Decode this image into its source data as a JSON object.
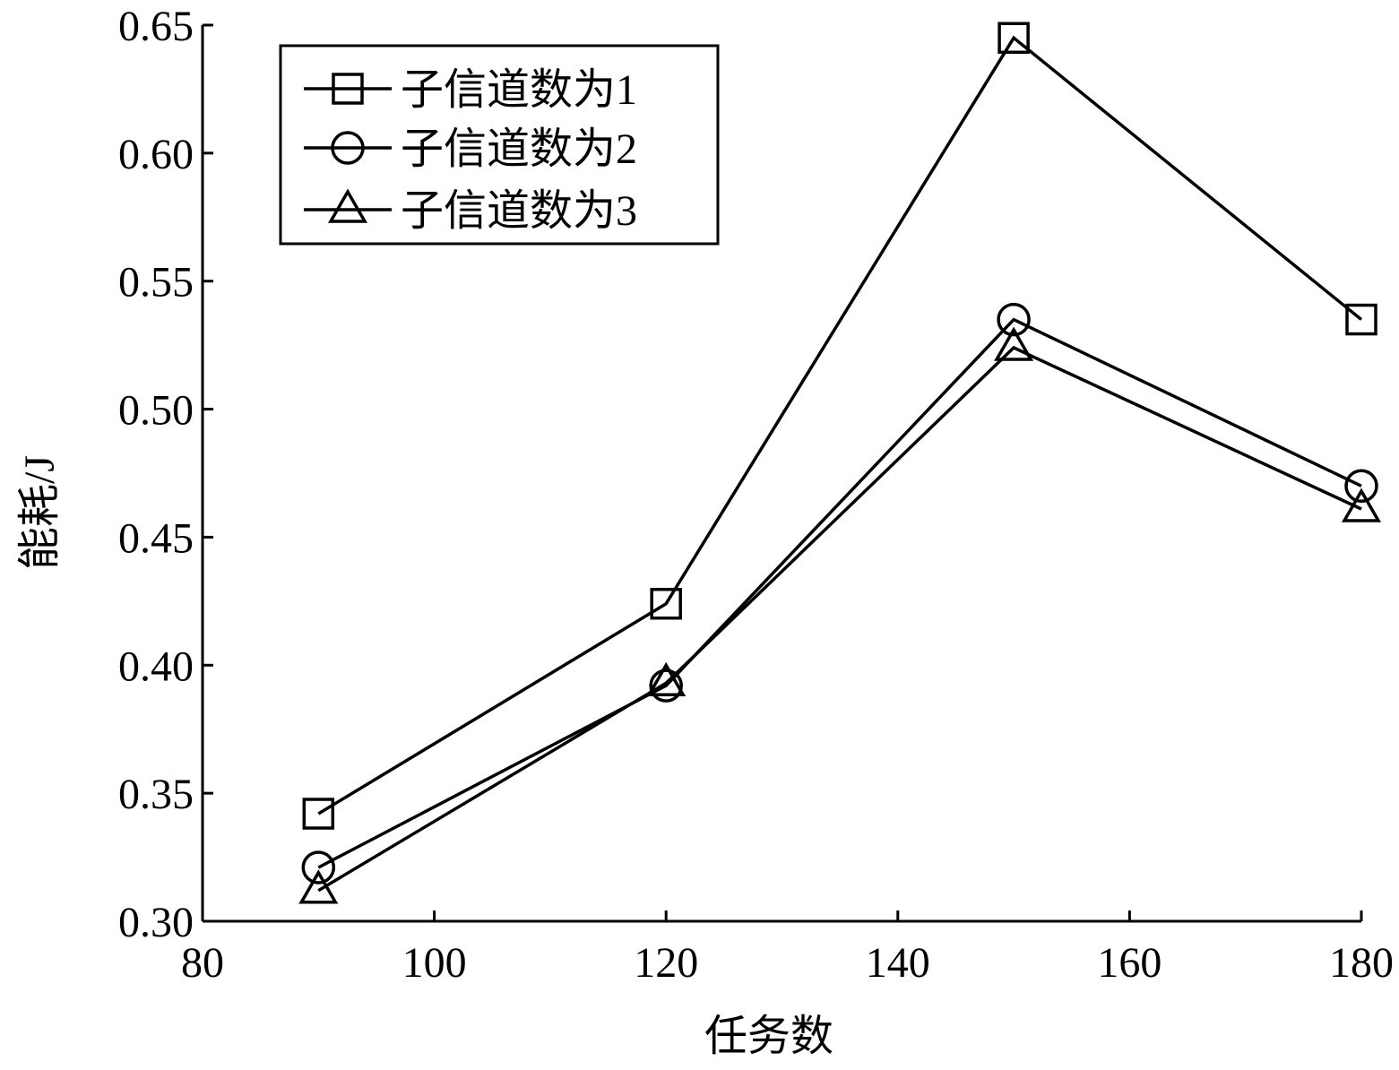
{
  "chart_data": {
    "type": "line",
    "title": "",
    "xlabel": "任务数",
    "ylabel": "能耗/J",
    "xlim": [
      80,
      180
    ],
    "ylim": [
      0.3,
      0.65
    ],
    "xticks": [
      80,
      100,
      120,
      140,
      160,
      180
    ],
    "yticks": [
      0.3,
      0.35,
      0.4,
      0.45,
      0.5,
      0.55,
      0.6,
      0.65
    ],
    "xtick_labels": [
      "80",
      "100",
      "120",
      "140",
      "160",
      "180"
    ],
    "ytick_labels": [
      "0.30",
      "0.35",
      "0.40",
      "0.45",
      "0.50",
      "0.55",
      "0.60",
      "0.65"
    ],
    "grid": false,
    "legend_position": "top-left",
    "x": [
      90,
      120,
      150,
      180
    ],
    "series": [
      {
        "name": "子信道数为1",
        "marker": "square",
        "values": [
          0.342,
          0.424,
          0.645,
          0.535
        ]
      },
      {
        "name": "子信道数为2",
        "marker": "circle",
        "values": [
          0.321,
          0.392,
          0.535,
          0.47
        ]
      },
      {
        "name": "子信道数为3",
        "marker": "triangle",
        "values": [
          0.312,
          0.393,
          0.524,
          0.461
        ]
      }
    ],
    "colors": {
      "line": "#000000",
      "background": "#ffffff"
    }
  }
}
